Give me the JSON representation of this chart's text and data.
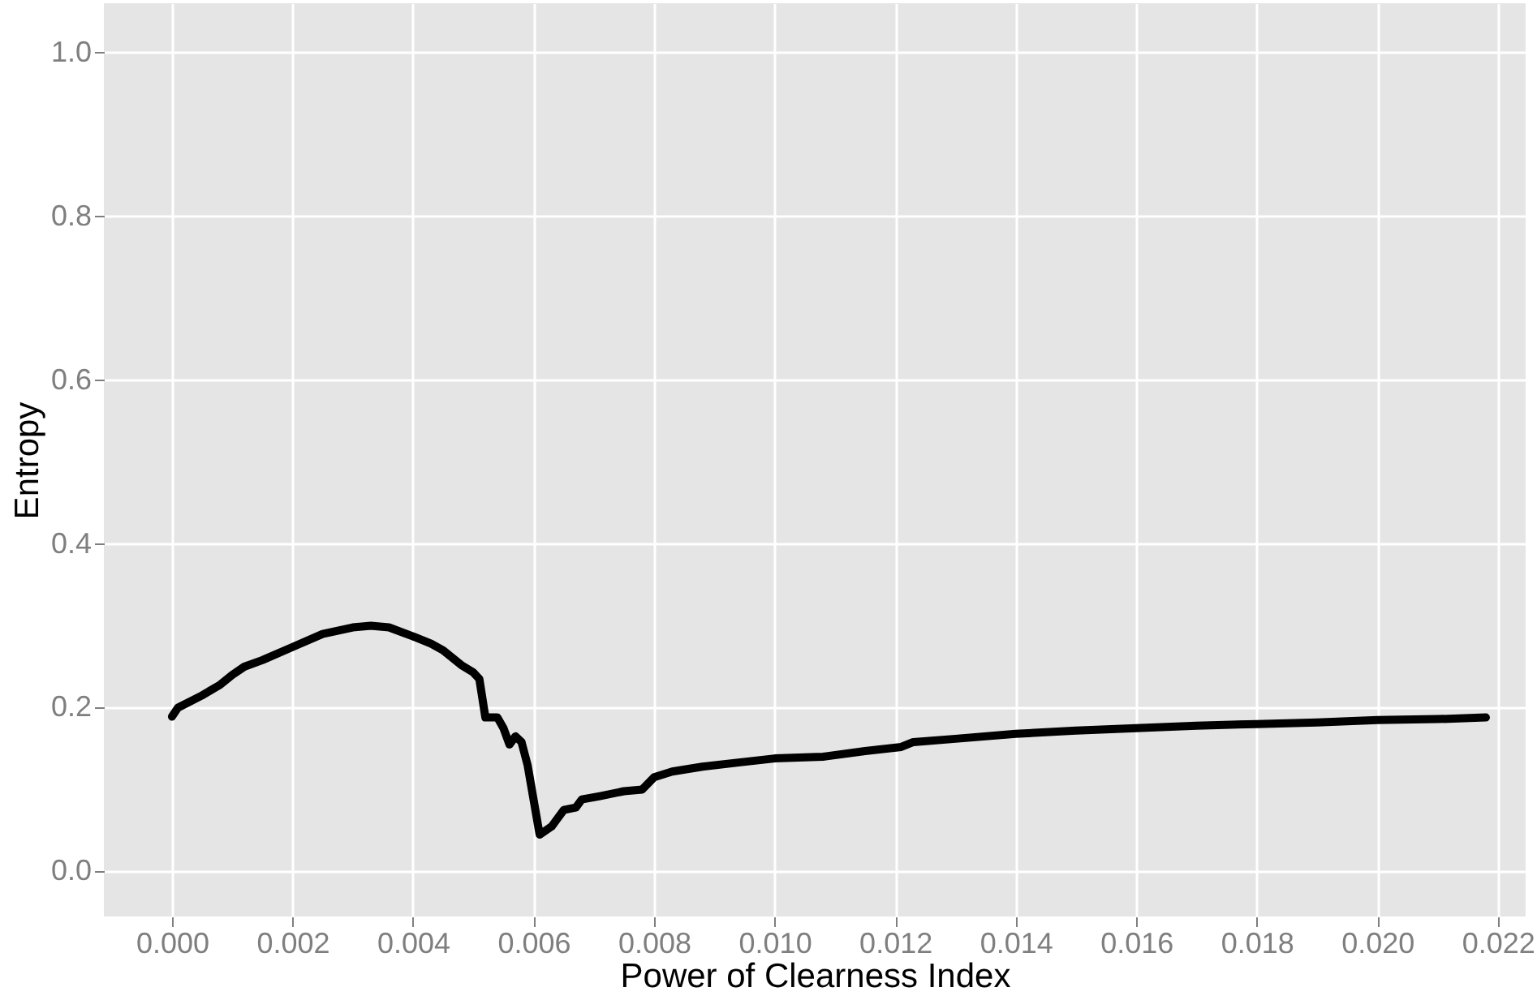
{
  "chart_data": {
    "type": "line",
    "xlabel": "Power of Clearness Index",
    "ylabel": "Entropy",
    "x": [
      0.0,
      0.0001,
      0.0005,
      0.0008,
      0.001,
      0.0012,
      0.0015,
      0.002,
      0.0025,
      0.003,
      0.0033,
      0.0036,
      0.004,
      0.0043,
      0.0045,
      0.0048,
      0.005,
      0.0051,
      0.0052,
      0.0054,
      0.0055,
      0.0056,
      0.0057,
      0.0058,
      0.0059,
      0.0061,
      0.0063,
      0.0065,
      0.0067,
      0.0068,
      0.0071,
      0.0075,
      0.0078,
      0.008,
      0.0083,
      0.0088,
      0.0094,
      0.01,
      0.0108,
      0.0115,
      0.0121,
      0.0123,
      0.013,
      0.014,
      0.015,
      0.016,
      0.017,
      0.018,
      0.019,
      0.02,
      0.021,
      0.0218
    ],
    "series": [
      {
        "color": "#000000",
        "values": [
          0.189,
          0.2,
          0.215,
          0.228,
          0.24,
          0.25,
          0.258,
          0.274,
          0.29,
          0.298,
          0.3,
          0.298,
          0.287,
          0.278,
          0.27,
          0.252,
          0.243,
          0.235,
          0.188,
          0.188,
          0.175,
          0.155,
          0.165,
          0.158,
          0.13,
          0.045,
          0.055,
          0.075,
          0.078,
          0.088,
          0.092,
          0.098,
          0.1,
          0.115,
          0.122,
          0.128,
          0.133,
          0.138,
          0.14,
          0.147,
          0.152,
          0.158,
          0.162,
          0.168,
          0.172,
          0.175,
          0.178,
          0.18,
          0.182,
          0.185,
          0.186,
          0.188
        ]
      }
    ],
    "xlim": [
      -0.00113,
      0.02246
    ],
    "ylim": [
      -0.055,
      1.06
    ],
    "xticks": [
      {
        "value": 0,
        "label": "0.000"
      },
      {
        "value": 0.002,
        "label": "0.002"
      },
      {
        "value": 0.004,
        "label": "0.004"
      },
      {
        "value": 0.006,
        "label": "0.006"
      },
      {
        "value": 0.008,
        "label": "0.008"
      },
      {
        "value": 0.01,
        "label": "0.010"
      },
      {
        "value": 0.012,
        "label": "0.012"
      },
      {
        "value": 0.014,
        "label": "0.014"
      },
      {
        "value": 0.016,
        "label": "0.016"
      },
      {
        "value": 0.018,
        "label": "0.018"
      },
      {
        "value": 0.02,
        "label": "0.020"
      },
      {
        "value": 0.022,
        "label": "0.022"
      }
    ],
    "yticks": [
      {
        "value": 0,
        "label": "0.0"
      },
      {
        "value": 0.2,
        "label": "0.2"
      },
      {
        "value": 0.4,
        "label": "0.4"
      },
      {
        "value": 0.6,
        "label": "0.6"
      },
      {
        "value": 0.8,
        "label": "0.8"
      },
      {
        "value": 1.0,
        "label": "1.0"
      }
    ],
    "grid": true,
    "line_style": "solid"
  }
}
